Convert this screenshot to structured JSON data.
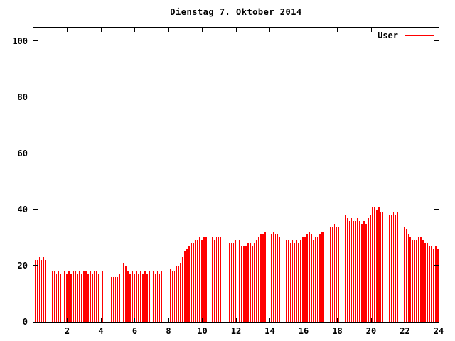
{
  "title": "Dienstag 7. Oktober 2014",
  "legend": {
    "label": "User"
  },
  "colors": {
    "series": "#ff0000",
    "axis": "#000000",
    "background": "#ffffff"
  },
  "axes": {
    "x": {
      "min": 0,
      "max": 24,
      "tick_values": [
        2,
        4,
        6,
        8,
        10,
        12,
        14,
        16,
        18,
        20,
        22,
        24
      ]
    },
    "y": {
      "min": 0,
      "max": 100,
      "tick_values": [
        0,
        20,
        40,
        60,
        80,
        100
      ]
    }
  },
  "chart_data": {
    "type": "bar",
    "title": "Dienstag 7. Oktober 2014",
    "xlabel": "",
    "ylabel": "",
    "xlim": [
      0,
      24
    ],
    "ylim": [
      0,
      100
    ],
    "grid": false,
    "legend_position": "top-right",
    "missing_value": 0,
    "series": [
      {
        "name": "User",
        "color": "#ff0000",
        "x_start_hour": 0,
        "x_interval_hours": 0.125,
        "values": [
          22,
          22,
          23,
          22,
          23,
          22,
          21,
          20,
          18,
          18,
          17,
          18,
          17,
          18,
          18,
          17,
          18,
          17,
          18,
          18,
          17,
          18,
          17,
          18,
          18,
          17,
          18,
          17,
          18,
          18,
          17,
          0,
          18,
          16,
          16,
          16,
          16,
          16,
          16,
          16,
          17,
          19,
          21,
          20,
          18,
          17,
          18,
          17,
          18,
          17,
          18,
          17,
          18,
          17,
          18,
          17,
          18,
          17,
          18,
          17,
          18,
          19,
          20,
          20,
          19,
          18,
          18,
          20,
          20,
          21,
          23,
          25,
          26,
          27,
          28,
          28,
          29,
          29,
          30,
          29,
          30,
          30,
          29,
          30,
          30,
          29,
          30,
          30,
          30,
          30,
          29,
          31,
          28,
          28,
          28,
          29,
          0,
          29,
          27,
          27,
          27,
          28,
          28,
          27,
          28,
          29,
          30,
          31,
          31,
          32,
          31,
          33,
          31,
          32,
          31,
          31,
          30,
          31,
          30,
          29,
          29,
          28,
          29,
          28,
          29,
          28,
          29,
          30,
          30,
          31,
          32,
          31,
          29,
          30,
          30,
          31,
          32,
          32,
          33,
          34,
          34,
          34,
          35,
          34,
          34,
          35,
          36,
          38,
          37,
          36,
          37,
          36,
          36,
          37,
          36,
          35,
          36,
          35,
          37,
          38,
          41,
          41,
          40,
          41,
          39,
          39,
          38,
          39,
          38,
          38,
          39,
          38,
          39,
          38,
          37,
          34,
          33,
          31,
          30,
          29,
          29,
          29,
          30,
          30,
          29,
          28,
          28,
          27,
          27,
          26,
          27,
          26
        ]
      }
    ]
  }
}
